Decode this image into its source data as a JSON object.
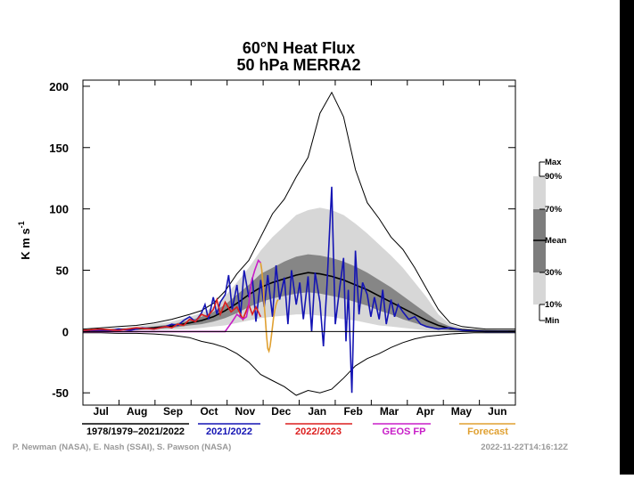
{
  "chart_data": {
    "type": "line",
    "title_line1": "60°N Heat Flux",
    "title_line2": "50 hPa   MERRA2",
    "ylabel": "K m s",
    "ylabel_sup": "-1",
    "ylim": [
      -60,
      205
    ],
    "yticks": [
      -50,
      0,
      50,
      100,
      150,
      200
    ],
    "x_months": [
      "Jul",
      "Aug",
      "Sep",
      "Oct",
      "Nov",
      "Dec",
      "Jan",
      "Feb",
      "Mar",
      "Apr",
      "May",
      "Jun"
    ],
    "x_day_range": [
      0,
      365
    ],
    "climatology": {
      "x": [
        0,
        15,
        30,
        45,
        60,
        75,
        90,
        100,
        110,
        120,
        130,
        140,
        150,
        160,
        170,
        180,
        190,
        200,
        210,
        220,
        230,
        240,
        250,
        260,
        270,
        280,
        290,
        300,
        310,
        320,
        330,
        340,
        350,
        365
      ],
      "max": [
        2,
        3,
        4,
        5,
        7,
        10,
        14,
        17,
        23,
        33,
        47,
        58,
        77,
        96,
        108,
        126,
        142,
        178,
        195,
        175,
        132,
        105,
        92,
        77,
        67,
        52,
        35,
        18,
        7,
        4,
        3,
        2,
        2,
        2
      ],
      "p90": [
        1,
        2,
        3,
        4,
        6,
        8,
        12,
        15,
        20,
        29,
        40,
        52,
        66,
        77,
        86,
        95,
        99,
        101,
        99,
        95,
        88,
        80,
        71,
        62,
        52,
        40,
        28,
        14,
        6,
        3,
        2,
        1.5,
        1,
        1
      ],
      "p70": [
        1,
        1,
        2,
        3,
        4,
        6,
        9,
        12,
        16,
        22,
        30,
        38,
        47,
        52,
        57,
        61,
        63,
        62,
        60,
        57,
        53,
        48,
        42,
        36,
        29,
        22,
        15,
        8,
        4,
        2,
        1.5,
        1,
        1,
        1
      ],
      "mean": [
        0.5,
        1,
        1.5,
        2,
        3,
        4.5,
        7,
        9,
        12,
        17,
        23,
        30,
        36,
        40,
        43,
        46,
        48,
        47,
        45,
        42,
        38,
        34,
        29,
        24,
        19,
        14,
        9,
        5,
        2.5,
        1.5,
        1,
        0.5,
        0.5,
        0.5
      ],
      "p30": [
        0,
        0.5,
        1,
        1.5,
        2,
        3,
        5,
        6,
        8,
        11,
        15,
        20,
        24,
        27,
        29,
        31,
        32,
        31,
        29,
        27,
        24,
        21,
        17,
        14,
        10,
        7,
        4,
        2,
        1,
        0.5,
        0.3,
        0,
        0,
        0
      ],
      "p10": [
        -0.5,
        0,
        0.5,
        1,
        1,
        1.5,
        2,
        3,
        4,
        5,
        7,
        9,
        11,
        12,
        13,
        14,
        14,
        13,
        12,
        10,
        9,
        7,
        5,
        4,
        3,
        2,
        1,
        0.5,
        0.2,
        0,
        0,
        -0.3,
        -0.5,
        -0.5
      ],
      "min": [
        -1,
        -1,
        -1.5,
        -1.5,
        -2,
        -3,
        -5,
        -8,
        -10,
        -13,
        -18,
        -25,
        -35,
        -40,
        -45,
        -52,
        -48,
        -50,
        -47,
        -38,
        -28,
        -22,
        -18,
        -13,
        -9,
        -6,
        -4,
        -3,
        -2,
        -1.5,
        -1,
        -1,
        -1,
        -1
      ]
    },
    "series": [
      {
        "name": "1978/1979–2021/2022",
        "color": "#000000",
        "note": "climatology envelope and mean"
      },
      {
        "name": "2021/2022",
        "color": "#1414b4",
        "x": [
          0,
          10,
          20,
          30,
          40,
          50,
          60,
          70,
          75,
          80,
          85,
          90,
          95,
          100,
          103,
          106,
          110,
          113,
          116,
          120,
          123,
          126,
          130,
          133,
          136,
          140,
          143,
          146,
          150,
          153,
          156,
          160,
          163,
          166,
          170,
          173,
          176,
          180,
          183,
          186,
          190,
          193,
          196,
          200,
          203,
          206,
          210,
          213,
          216,
          220,
          222,
          224,
          227,
          230,
          233,
          236,
          240,
          243,
          246,
          250,
          253,
          256,
          260,
          263,
          266,
          270,
          275,
          280,
          285,
          290,
          300,
          310,
          320,
          340,
          365
        ],
        "values": [
          0,
          1,
          0.5,
          2,
          1,
          3,
          2,
          4,
          6,
          5,
          9,
          12,
          8,
          15,
          22,
          10,
          28,
          14,
          24,
          30,
          46,
          18,
          38,
          12,
          50,
          28,
          44,
          8,
          42,
          20,
          46,
          12,
          54,
          26,
          44,
          6,
          50,
          22,
          40,
          10,
          45,
          0,
          48,
          24,
          -12,
          38,
          118,
          6,
          30,
          60,
          -8,
          34,
          -50,
          66,
          14,
          40,
          30,
          12,
          28,
          10,
          34,
          6,
          26,
          12,
          22,
          16,
          10,
          12,
          6,
          4,
          2,
          3,
          1,
          0,
          0
        ]
      },
      {
        "name": "2022/2023",
        "color": "#dc1e1e",
        "x": [
          0,
          15,
          30,
          45,
          60,
          70,
          75,
          80,
          85,
          90,
          95,
          100,
          105,
          110,
          113,
          116,
          120,
          125,
          130,
          135,
          140,
          143,
          146,
          150
        ],
        "values": [
          1,
          2,
          1,
          3,
          2,
          4,
          3,
          6,
          5,
          10,
          8,
          14,
          12,
          18,
          26,
          14,
          24,
          16,
          20,
          10,
          22,
          14,
          20,
          12
        ]
      },
      {
        "name": "GEOS FP",
        "color": "#c81ec8",
        "x": [
          0,
          20,
          40,
          60,
          80,
          100,
          110,
          120,
          126,
          130,
          135,
          138,
          140,
          142,
          145,
          148,
          150
        ],
        "values": [
          0,
          0,
          0,
          0,
          0,
          0,
          0,
          0,
          8,
          14,
          10,
          12,
          22,
          40,
          50,
          58,
          56
        ]
      },
      {
        "name": "Forecast",
        "color": "#e0a030",
        "x": [
          150,
          151,
          152,
          153,
          154,
          155,
          156,
          157,
          158,
          159,
          160,
          161,
          162,
          163,
          164,
          165
        ],
        "values": [
          56,
          50,
          38,
          22,
          10,
          -4,
          -14,
          -16,
          -12,
          -4,
          4,
          12,
          18,
          22,
          25,
          26
        ]
      }
    ],
    "band_legend": [
      "Max",
      "90%",
      "70%",
      "Mean",
      "30%",
      "10%",
      "Min"
    ],
    "footer_left": "P. Newman (NASA), E. Nash (SSAI), S. Pawson (NASA)",
    "footer_right": "2022-11-22T14:16:12Z",
    "colors": {
      "band_outer": "#d7d7d7",
      "band_mid": "#b4b4b4",
      "band_inner": "#7d7d7d",
      "frame": "#000000",
      "right_bar": "#000000"
    }
  }
}
